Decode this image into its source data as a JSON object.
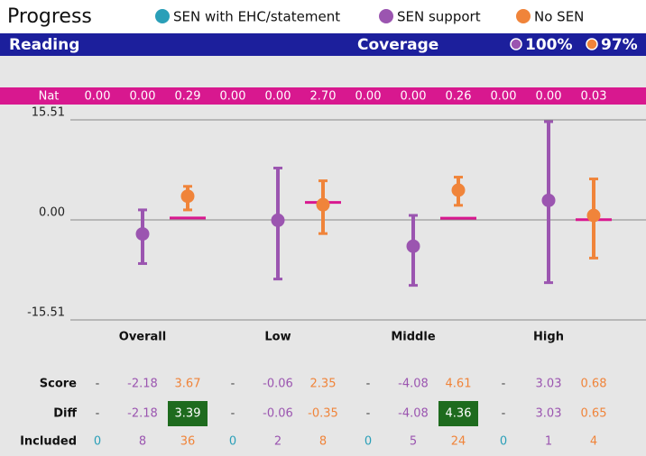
{
  "chart_data": {
    "type": "errorbar",
    "title": "Progress",
    "subject": "Reading",
    "coverage": {
      "label": "Coverage",
      "values": [
        100,
        97
      ],
      "value_labels": [
        "100%",
        "97%"
      ]
    },
    "categories": [
      "Overall",
      "Low",
      "Middle",
      "High"
    ],
    "series": [
      {
        "name": "SEN with EHC/statement",
        "color": "#2a9fb8",
        "values": [
          null,
          null,
          null,
          null
        ],
        "value_labels": [
          "-",
          "-",
          "-",
          "-"
        ]
      },
      {
        "name": "SEN support",
        "color": "#9b55b0",
        "values": [
          -2.18,
          -0.06,
          -4.08,
          3.03
        ],
        "low": [
          -6.77,
          -9.17,
          -10.15,
          -9.73
        ],
        "high": [
          1.55,
          8.04,
          0.7,
          15.23
        ]
      },
      {
        "name": "No SEN",
        "color": "#f0843a",
        "values": [
          3.67,
          2.35,
          4.61,
          0.68
        ],
        "low": [
          1.55,
          -2.12,
          2.26,
          -5.92
        ],
        "high": [
          5.2,
          6.06,
          6.63,
          6.35
        ]
      }
    ],
    "nat": {
      "label": "Nat",
      "color": "#d8188f",
      "values": [
        0,
        0,
        0.29,
        0,
        0,
        2.7,
        0,
        0,
        0.26,
        0,
        0,
        0.03
      ],
      "value_labels": [
        "0.00",
        "0.00",
        "0.29",
        "0.00",
        "0.00",
        "2.70",
        "0.00",
        "0.00",
        "0.26",
        "0.00",
        "0.00",
        "0.03"
      ]
    },
    "ylim": [
      -15.51,
      15.51
    ],
    "yticks": [
      {
        "value": 15.51,
        "label": "15.51"
      },
      {
        "value": 0,
        "label": "0.00"
      },
      {
        "value": -15.51,
        "label": "-15.51"
      }
    ],
    "score_label": "Score",
    "diff": {
      "label": "Diff",
      "cells": [
        "-",
        "-2.18",
        "3.39",
        "-",
        "-0.06",
        "-0.35",
        "-",
        "-4.08",
        "4.36",
        "-",
        "3.03",
        "0.65"
      ],
      "highlight": [
        2,
        8
      ],
      "highlight_color": "#1e6b1e"
    },
    "included": {
      "label": "Included",
      "cells": [
        0,
        8,
        36,
        0,
        2,
        8,
        0,
        5,
        24,
        0,
        1,
        4
      ]
    }
  }
}
